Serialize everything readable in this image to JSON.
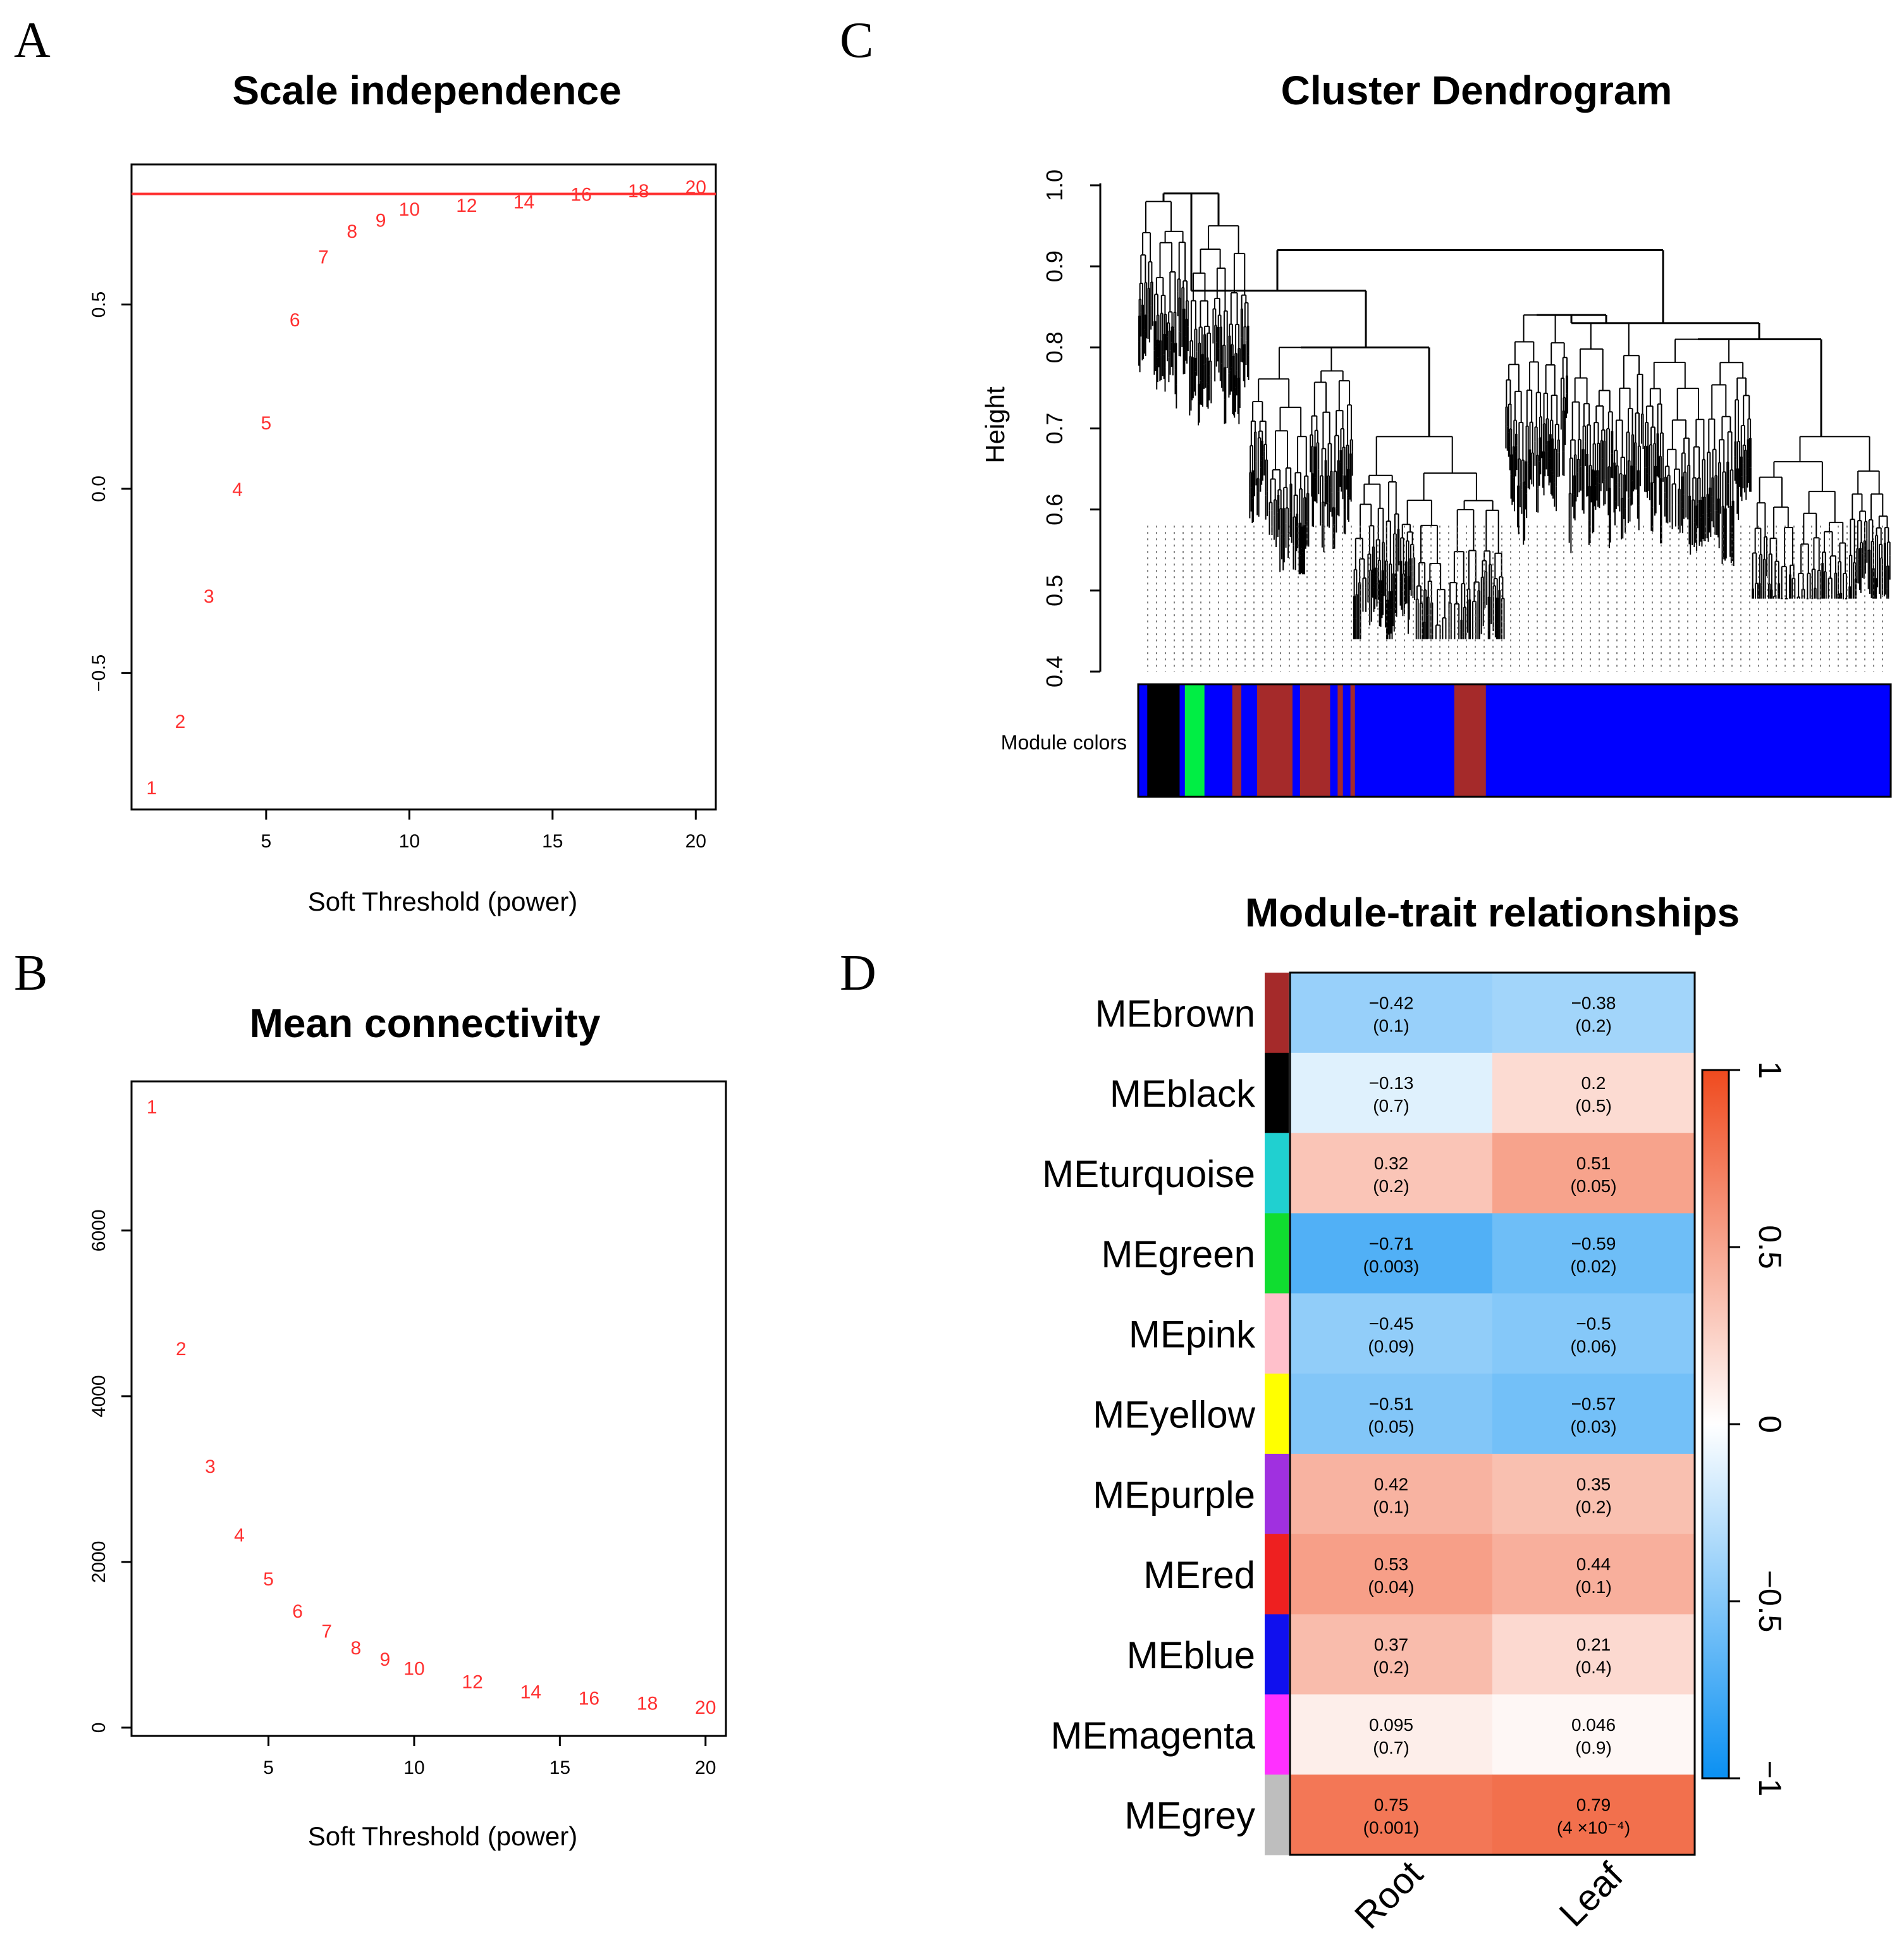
{
  "panels": {
    "a": "A",
    "b": "B",
    "c": "C",
    "d": "D"
  },
  "colors": {
    "red": "#ff3030",
    "axis": "#000000"
  },
  "chart_data": [
    {
      "id": "scale",
      "type": "scatter",
      "title": "Scale independence",
      "xlabel": "Soft Threshold (power)",
      "ylabel": "",
      "xlim": [
        0.3,
        20.7
      ],
      "ylim": [
        -0.87,
        0.88
      ],
      "xticks": [
        5,
        10,
        15,
        20
      ],
      "yticks": [
        -0.5,
        0.0,
        0.5
      ],
      "ytick_labels": [
        "−0.5",
        "0.0",
        "0.5"
      ],
      "hline": 0.8,
      "points": [
        {
          "x": 1,
          "y": -0.81,
          "label": "1"
        },
        {
          "x": 2,
          "y": -0.63,
          "label": "2"
        },
        {
          "x": 3,
          "y": -0.29,
          "label": "3"
        },
        {
          "x": 4,
          "y": 0.0,
          "label": "4"
        },
        {
          "x": 5,
          "y": 0.18,
          "label": "5"
        },
        {
          "x": 6,
          "y": 0.46,
          "label": "6"
        },
        {
          "x": 7,
          "y": 0.63,
          "label": "7"
        },
        {
          "x": 8,
          "y": 0.7,
          "label": "8"
        },
        {
          "x": 9,
          "y": 0.73,
          "label": "9"
        },
        {
          "x": 10,
          "y": 0.76,
          "label": "10"
        },
        {
          "x": 12,
          "y": 0.77,
          "label": "12"
        },
        {
          "x": 14,
          "y": 0.78,
          "label": "14"
        },
        {
          "x": 16,
          "y": 0.8,
          "label": "16"
        },
        {
          "x": 18,
          "y": 0.81,
          "label": "18"
        },
        {
          "x": 20,
          "y": 0.82,
          "label": "20"
        }
      ]
    },
    {
      "id": "mean",
      "type": "scatter",
      "title": "Mean connectivity",
      "xlabel": "Soft Threshold (power)",
      "ylabel": "",
      "xlim": [
        0.3,
        20.7
      ],
      "ylim": [
        -100,
        7800
      ],
      "xticks": [
        5,
        10,
        15,
        20
      ],
      "yticks": [
        0,
        2000,
        4000,
        6000
      ],
      "ytick_labels": [
        "0",
        "2000",
        "4000",
        "6000"
      ],
      "points": [
        {
          "x": 1,
          "y": 7500,
          "label": "1"
        },
        {
          "x": 2,
          "y": 4580,
          "label": "2"
        },
        {
          "x": 3,
          "y": 3160,
          "label": "3"
        },
        {
          "x": 4,
          "y": 2330,
          "label": "4"
        },
        {
          "x": 5,
          "y": 1800,
          "label": "5"
        },
        {
          "x": 6,
          "y": 1410,
          "label": "6"
        },
        {
          "x": 7,
          "y": 1170,
          "label": "7"
        },
        {
          "x": 8,
          "y": 970,
          "label": "8"
        },
        {
          "x": 9,
          "y": 830,
          "label": "9"
        },
        {
          "x": 10,
          "y": 720,
          "label": "10"
        },
        {
          "x": 12,
          "y": 560,
          "label": "12"
        },
        {
          "x": 14,
          "y": 440,
          "label": "14"
        },
        {
          "x": 16,
          "y": 360,
          "label": "16"
        },
        {
          "x": 18,
          "y": 300,
          "label": "18"
        },
        {
          "x": 20,
          "y": 250,
          "label": "20"
        }
      ]
    },
    {
      "id": "dendro",
      "type": "dendrogram",
      "title": "Cluster Dendrogram",
      "ylabel": "Height",
      "ylim": [
        0.4,
        1.0
      ],
      "yticks": [
        0.4,
        0.5,
        0.6,
        0.7,
        0.8,
        0.9,
        1.0
      ],
      "ytick_labels": [
        "0.4",
        "0.5",
        "0.6",
        "0.7",
        "0.8",
        "0.9",
        "1.0"
      ],
      "color_bar_label": "Module colors",
      "module_colors": [
        {
          "name": "blue",
          "color": "#0000ff",
          "from": 0.0,
          "to": 0.012
        },
        {
          "name": "black",
          "color": "#000000",
          "from": 0.012,
          "to": 0.055
        },
        {
          "name": "blue",
          "color": "#0000ff",
          "from": 0.055,
          "to": 0.062
        },
        {
          "name": "green",
          "color": "#00ee44",
          "from": 0.062,
          "to": 0.088
        },
        {
          "name": "blue",
          "color": "#0000ff",
          "from": 0.088,
          "to": 0.125
        },
        {
          "name": "brown",
          "color": "#a52a2a",
          "from": 0.125,
          "to": 0.137
        },
        {
          "name": "blue",
          "color": "#0000ff",
          "from": 0.137,
          "to": 0.158
        },
        {
          "name": "brown",
          "color": "#a52a2a",
          "from": 0.158,
          "to": 0.205
        },
        {
          "name": "blue",
          "color": "#0000ff",
          "from": 0.205,
          "to": 0.215
        },
        {
          "name": "brown",
          "color": "#a52a2a",
          "from": 0.215,
          "to": 0.255
        },
        {
          "name": "blue",
          "color": "#0000ff",
          "from": 0.255,
          "to": 0.265
        },
        {
          "name": "brown",
          "color": "#a52a2a",
          "from": 0.265,
          "to": 0.272
        },
        {
          "name": "blue",
          "color": "#0000ff",
          "from": 0.272,
          "to": 0.282
        },
        {
          "name": "brown",
          "color": "#a52a2a",
          "from": 0.282,
          "to": 0.288
        },
        {
          "name": "blue",
          "color": "#0000ff",
          "from": 0.288,
          "to": 0.42
        },
        {
          "name": "brown",
          "color": "#a52a2a",
          "from": 0.42,
          "to": 0.462
        },
        {
          "name": "blue",
          "color": "#0000ff",
          "from": 0.462,
          "to": 1.0
        }
      ]
    },
    {
      "id": "heatmap",
      "type": "heatmap",
      "title": "Module-trait relationships",
      "columns": [
        "Root",
        "Leaf"
      ],
      "rows": [
        {
          "module": "MEbrown",
          "color": "#a52a2a",
          "values": [
            -0.42,
            -0.38
          ],
          "labels": [
            "−0.42",
            "−0.38"
          ],
          "pvalues": [
            "(0.1)",
            "(0.2)"
          ]
        },
        {
          "module": "MEblack",
          "color": "#000000",
          "values": [
            -0.13,
            0.2
          ],
          "labels": [
            "−0.13",
            "0.2"
          ],
          "pvalues": [
            "(0.7)",
            "(0.5)"
          ]
        },
        {
          "module": "MEturquoise",
          "color": "#20d0d0",
          "values": [
            0.32,
            0.51
          ],
          "labels": [
            "0.32",
            "0.51"
          ],
          "pvalues": [
            "(0.2)",
            "(0.05)"
          ]
        },
        {
          "module": "MEgreen",
          "color": "#10dd30",
          "values": [
            -0.71,
            -0.59
          ],
          "labels": [
            "−0.71",
            "−0.59"
          ],
          "pvalues": [
            "(0.003)",
            "(0.02)"
          ]
        },
        {
          "module": "MEpink",
          "color": "#ffc0cb",
          "values": [
            -0.45,
            -0.5
          ],
          "labels": [
            "−0.45",
            "−0.5"
          ],
          "pvalues": [
            "(0.09)",
            "(0.06)"
          ]
        },
        {
          "module": "MEyellow",
          "color": "#ffff00",
          "values": [
            -0.51,
            -0.57
          ],
          "labels": [
            "−0.51",
            "−0.57"
          ],
          "pvalues": [
            "(0.05)",
            "(0.03)"
          ]
        },
        {
          "module": "MEpurple",
          "color": "#a030e0",
          "values": [
            0.42,
            0.35
          ],
          "labels": [
            "0.42",
            "0.35"
          ],
          "pvalues": [
            "(0.1)",
            "(0.2)"
          ]
        },
        {
          "module": "MEred",
          "color": "#ee2020",
          "values": [
            0.53,
            0.44
          ],
          "labels": [
            "0.53",
            "0.44"
          ],
          "pvalues": [
            "(0.04)",
            "(0.1)"
          ]
        },
        {
          "module": "MEblue",
          "color": "#1010ee",
          "values": [
            0.37,
            0.21
          ],
          "labels": [
            "0.37",
            "0.21"
          ],
          "pvalues": [
            "(0.2)",
            "(0.4)"
          ]
        },
        {
          "module": "MEmagenta",
          "color": "#ff30ff",
          "values": [
            0.095,
            0.046
          ],
          "labels": [
            "0.095",
            "0.046"
          ],
          "pvalues": [
            "(0.7)",
            "(0.9)"
          ]
        },
        {
          "module": "MEgrey",
          "color": "#bebebe",
          "values": [
            0.75,
            0.79
          ],
          "labels": [
            "0.75",
            "0.79"
          ],
          "pvalues": [
            "(0.001)",
            "(4 ×10⁻⁴)"
          ]
        }
      ],
      "scale_range": [
        -1,
        1
      ],
      "scale_ticks": [
        -1,
        -0.5,
        0,
        0.5,
        1
      ],
      "scale_tick_labels": [
        "−1",
        "−0.5",
        "0",
        "0.5",
        "1"
      ]
    }
  ]
}
